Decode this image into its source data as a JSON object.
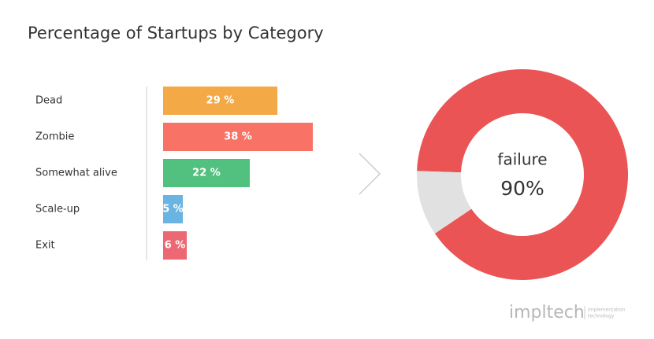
{
  "title": "Percentage of Startups by Category",
  "chart_data": [
    {
      "type": "hbar",
      "categories": [
        "Dead",
        "Zombie",
        "Somewhat alive",
        "Scale-up",
        "Exit"
      ],
      "values": [
        29,
        38,
        22,
        5,
        6
      ],
      "value_labels": [
        "29 %",
        "38 %",
        "22 %",
        "5 %",
        "6 %"
      ],
      "colors": [
        "#f4a947",
        "#f87266",
        "#52c07e",
        "#69b4e0",
        "#ec6873"
      ]
    },
    {
      "type": "donut",
      "values": [
        90,
        10
      ],
      "colors": [
        "#ea5455",
        "#e1e1e1"
      ],
      "center_label": "failure",
      "value_labels": [
        "90%",
        null
      ]
    }
  ],
  "logo": {
    "name": "impltech",
    "tagline": [
      "implementation",
      "technology"
    ]
  }
}
